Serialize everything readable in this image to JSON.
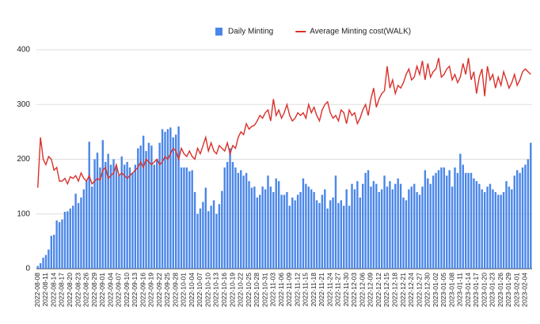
{
  "chart_data": {
    "type": "bar",
    "categories": [
      "2022-08-08",
      null,
      null,
      "2022-08-11",
      null,
      null,
      "2022-08-14",
      null,
      null,
      "2022-08-17",
      null,
      null,
      "2022-08-20",
      null,
      null,
      "2022-08-23",
      null,
      null,
      "2022-08-26",
      null,
      null,
      "2022-08-29",
      null,
      null,
      "2022-09-01",
      null,
      null,
      "2022-09-04",
      null,
      null,
      "2022-09-07",
      null,
      null,
      "2022-09-10",
      null,
      null,
      "2022-09-13",
      null,
      null,
      "2022-09-16",
      null,
      null,
      "2022-09-19",
      null,
      null,
      "2022-09-22",
      null,
      null,
      "2022-09-25",
      null,
      null,
      "2022-09-28",
      null,
      null,
      "2022-10-01",
      null,
      null,
      "2022-10-04",
      null,
      null,
      "2022-10-07",
      null,
      null,
      "2022-10-10",
      null,
      null,
      "2022-10-13",
      null,
      null,
      "2022-10-16",
      null,
      null,
      "2022-10-19",
      null,
      null,
      "2022-10-22",
      null,
      null,
      "2022-10-25",
      null,
      null,
      "2022-10-28",
      null,
      null,
      "2022-10-31",
      null,
      null,
      "2022-11-03",
      null,
      null,
      "2022-11-06",
      null,
      null,
      "2022-11-09",
      null,
      null,
      "2022-11-12",
      null,
      null,
      "2022-11-15",
      null,
      null,
      "2022-11-18",
      null,
      null,
      "2022-11-21",
      null,
      null,
      "2022-11-24",
      null,
      null,
      "2022-11-27",
      null,
      null,
      "2022-11-30",
      null,
      null,
      "2022-12-03",
      null,
      null,
      "2022-12-06",
      null,
      null,
      "2022-12-09",
      null,
      null,
      "2022-12-12",
      null,
      null,
      "2022-12-15",
      null,
      null,
      "2022-12-18",
      null,
      null,
      "2022-12-21",
      null,
      null,
      "2022-12-24",
      null,
      null,
      "2022-12-27",
      null,
      null,
      "2022-12-30",
      null,
      null,
      "2023-01-02",
      null,
      null,
      "2023-01-05",
      null,
      null,
      "2023-01-08",
      null,
      null,
      "2023-01-11",
      null,
      null,
      "2023-01-14",
      null,
      null,
      "2023-01-17",
      null,
      null,
      "2023-01-20",
      null,
      null,
      "2023-01-23",
      null,
      null,
      "2023-01-26",
      null,
      null,
      "2023-01-29",
      null,
      null,
      "2023-02-01",
      null,
      null,
      "2023-02-04",
      null,
      null
    ],
    "series": [
      {
        "name": "Daily Minting",
        "type": "bar",
        "color": "#4a86e8",
        "values": [
          5,
          10,
          20,
          25,
          35,
          60,
          62,
          88,
          85,
          90,
          104,
          105,
          110,
          115,
          137,
          120,
          130,
          145,
          160,
          232,
          150,
          200,
          212,
          185,
          235,
          195,
          210,
          190,
          200,
          185,
          170,
          205,
          190,
          195,
          185,
          175,
          190,
          220,
          225,
          243,
          215,
          230,
          225,
          190,
          200,
          230,
          255,
          250,
          255,
          258,
          240,
          245,
          260,
          185,
          185,
          185,
          178,
          180,
          140,
          100,
          110,
          122,
          148,
          105,
          115,
          125,
          100,
          118,
          142,
          185,
          195,
          220,
          195,
          185,
          175,
          180,
          170,
          175,
          160,
          148,
          150,
          130,
          135,
          150,
          145,
          170,
          150,
          140,
          165,
          160,
          135,
          135,
          140,
          115,
          130,
          125,
          135,
          140,
          165,
          155,
          150,
          145,
          140,
          125,
          120,
          135,
          145,
          110,
          125,
          130,
          170,
          120,
          125,
          115,
          145,
          115,
          155,
          145,
          160,
          130,
          155,
          175,
          180,
          150,
          160,
          155,
          140,
          145,
          170,
          150,
          160,
          145,
          155,
          165,
          155,
          130,
          125,
          145,
          150,
          155,
          140,
          135,
          150,
          180,
          165,
          155,
          170,
          175,
          180,
          185,
          185,
          170,
          180,
          150,
          185,
          175,
          210,
          190,
          175,
          175,
          175,
          165,
          160,
          155,
          145,
          140,
          150,
          155,
          145,
          140,
          135,
          135,
          140,
          160,
          150,
          145,
          170,
          180,
          175,
          185,
          190,
          200,
          230
        ]
      },
      {
        "name": "Average Minting cost(WALK)",
        "type": "line",
        "color": "#d9302b",
        "values": [
          148,
          240,
          200,
          190,
          205,
          200,
          180,
          185,
          160,
          160,
          165,
          155,
          168,
          165,
          170,
          160,
          175,
          165,
          160,
          170,
          155,
          160,
          165,
          162,
          180,
          185,
          165,
          170,
          175,
          190,
          170,
          175,
          170,
          165,
          170,
          175,
          180,
          185,
          195,
          185,
          200,
          195,
          190,
          195,
          200,
          190,
          195,
          205,
          200,
          210,
          220,
          215,
          200,
          220,
          210,
          205,
          215,
          205,
          200,
          220,
          210,
          225,
          240,
          215,
          230,
          215,
          210,
          225,
          220,
          215,
          230,
          210,
          225,
          220,
          240,
          250,
          245,
          265,
          255,
          260,
          262,
          270,
          280,
          275,
          285,
          290,
          270,
          310,
          280,
          290,
          275,
          285,
          300,
          280,
          270,
          275,
          285,
          280,
          285,
          275,
          300,
          285,
          295,
          280,
          270,
          290,
          300,
          305,
          285,
          275,
          280,
          270,
          290,
          285,
          265,
          290,
          280,
          285,
          265,
          275,
          290,
          300,
          280,
          310,
          330,
          295,
          310,
          320,
          325,
          370,
          330,
          345,
          320,
          335,
          330,
          340,
          355,
          365,
          345,
          350,
          370,
          355,
          380,
          345,
          375,
          350,
          360,
          365,
          385,
          350,
          355,
          365,
          370,
          345,
          355,
          340,
          350,
          375,
          355,
          385,
          345,
          360,
          320,
          350,
          365,
          315,
          370,
          345,
          355,
          330,
          350,
          335,
          360,
          345,
          330,
          340,
          355,
          335,
          345,
          360,
          365,
          360,
          355
        ]
      }
    ],
    "ylim": [
      0,
      400
    ],
    "yticks": [
      0,
      100,
      200,
      300,
      400
    ],
    "grid": true,
    "legend": "top"
  }
}
